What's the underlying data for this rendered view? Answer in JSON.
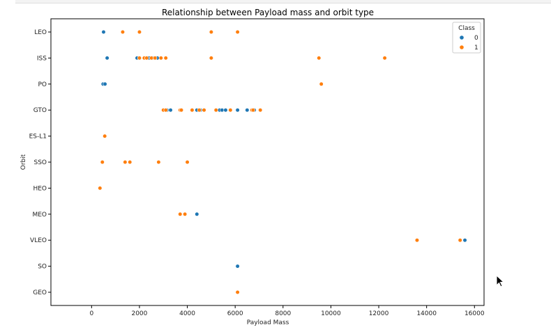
{
  "chart_data": {
    "type": "scatter",
    "title": "Relationship between Payload mass and orbit type",
    "xlabel": "Payload Mass",
    "ylabel": "Orbit",
    "xlim": [
      -1700,
      16400
    ],
    "xticks": [
      0,
      2000,
      4000,
      6000,
      8000,
      10000,
      12000,
      14000,
      16000
    ],
    "categories": [
      "LEO",
      "ISS",
      "PO",
      "GTO",
      "ES-L1",
      "SSO",
      "HEO",
      "MEO",
      "VLEO",
      "SO",
      "GEO"
    ],
    "legend": {
      "title": "Class",
      "placement": "top-right",
      "entries": [
        "0",
        "1"
      ]
    },
    "colors": {
      "0": "#1f77b4",
      "1": "#ff7f0e"
    },
    "series": [
      {
        "name": "0",
        "points": [
          {
            "x": 500,
            "y": "LEO"
          },
          {
            "x": 650,
            "y": "ISS"
          },
          {
            "x": 1900,
            "y": "ISS"
          },
          {
            "x": 2400,
            "y": "ISS"
          },
          {
            "x": 2550,
            "y": "ISS"
          },
          {
            "x": 2750,
            "y": "ISS"
          },
          {
            "x": 480,
            "y": "PO"
          },
          {
            "x": 560,
            "y": "PO"
          },
          {
            "x": 3150,
            "y": "GTO"
          },
          {
            "x": 3300,
            "y": "GTO"
          },
          {
            "x": 4400,
            "y": "GTO"
          },
          {
            "x": 4550,
            "y": "GTO"
          },
          {
            "x": 5350,
            "y": "GTO"
          },
          {
            "x": 5450,
            "y": "GTO"
          },
          {
            "x": 5600,
            "y": "GTO"
          },
          {
            "x": 6100,
            "y": "GTO"
          },
          {
            "x": 6500,
            "y": "GTO"
          },
          {
            "x": 6800,
            "y": "GTO"
          },
          {
            "x": 4400,
            "y": "MEO"
          },
          {
            "x": 15600,
            "y": "VLEO"
          },
          {
            "x": 6100,
            "y": "SO"
          }
        ]
      },
      {
        "name": "1",
        "points": [
          {
            "x": 1300,
            "y": "LEO"
          },
          {
            "x": 2000,
            "y": "LEO"
          },
          {
            "x": 5000,
            "y": "LEO"
          },
          {
            "x": 6100,
            "y": "LEO"
          },
          {
            "x": 2000,
            "y": "ISS"
          },
          {
            "x": 2200,
            "y": "ISS"
          },
          {
            "x": 2300,
            "y": "ISS"
          },
          {
            "x": 2500,
            "y": "ISS"
          },
          {
            "x": 2650,
            "y": "ISS"
          },
          {
            "x": 2900,
            "y": "ISS"
          },
          {
            "x": 3100,
            "y": "ISS"
          },
          {
            "x": 5000,
            "y": "ISS"
          },
          {
            "x": 9500,
            "y": "ISS"
          },
          {
            "x": 12250,
            "y": "ISS"
          },
          {
            "x": 9600,
            "y": "PO"
          },
          {
            "x": 3000,
            "y": "GTO"
          },
          {
            "x": 3100,
            "y": "GTO"
          },
          {
            "x": 3700,
            "y": "GTO"
          },
          {
            "x": 3750,
            "y": "GTO"
          },
          {
            "x": 4200,
            "y": "GTO"
          },
          {
            "x": 4500,
            "y": "GTO"
          },
          {
            "x": 4700,
            "y": "GTO"
          },
          {
            "x": 5200,
            "y": "GTO"
          },
          {
            "x": 5800,
            "y": "GTO"
          },
          {
            "x": 6700,
            "y": "GTO"
          },
          {
            "x": 6750,
            "y": "GTO"
          },
          {
            "x": 7050,
            "y": "GTO"
          },
          {
            "x": 550,
            "y": "ES-L1"
          },
          {
            "x": 450,
            "y": "SSO"
          },
          {
            "x": 1400,
            "y": "SSO"
          },
          {
            "x": 1600,
            "y": "SSO"
          },
          {
            "x": 2800,
            "y": "SSO"
          },
          {
            "x": 4000,
            "y": "SSO"
          },
          {
            "x": 350,
            "y": "HEO"
          },
          {
            "x": 3700,
            "y": "MEO"
          },
          {
            "x": 3900,
            "y": "MEO"
          },
          {
            "x": 13600,
            "y": "VLEO"
          },
          {
            "x": 15400,
            "y": "VLEO"
          },
          {
            "x": 6100,
            "y": "GEO"
          }
        ]
      }
    ],
    "grid": false
  }
}
